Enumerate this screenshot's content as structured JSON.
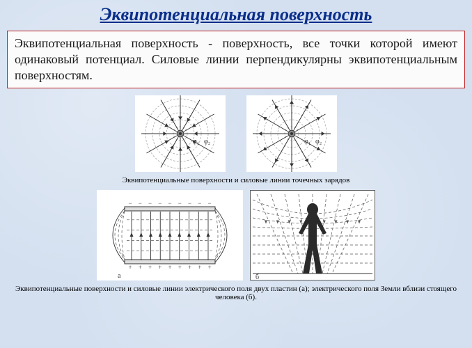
{
  "title": {
    "text": "Эквипотенциальная поверхность",
    "color": "#0b2e8a",
    "fontsize": 26
  },
  "definition": {
    "text": "Эквипотенциальная поверхность - поверхность, все точки которой имеют одинаковый потенциал. Силовые линии перпендикулярны эквипотенциальным поверхностям.",
    "border_color": "#c02020",
    "bg_color": "#fbfbfb",
    "fontsize": 18,
    "text_color": "#1a1a1a"
  },
  "figure1": {
    "type": "diagram",
    "caption": "Эквипотенциальные поверхности и силовые линии точечных зарядов",
    "panel_bg": "#ffffff",
    "line_color": "#333333",
    "circle_color": "#aaaaaa",
    "radii": [
      10,
      20,
      30,
      40,
      50
    ],
    "n_rays": 12,
    "labels": {
      "phi1": "φ₁",
      "phi2": "φ₂"
    },
    "label_fontsize": 10,
    "arrow_outward_left": false,
    "arrow_outward_right": true
  },
  "figure2": {
    "type": "diagram",
    "caption": "Эквипотенциальные поверхности и силовые линии электрического поля двух пластин (а); электрического поля Земли вблизи стоящего человека (б).",
    "panel_bg": "#ffffff",
    "line_color": "#333333",
    "dash_color": "#555555",
    "plate_neg": "−",
    "plate_pos": "+",
    "label_a": "а",
    "label_b": "б",
    "label_fontsize": 10,
    "n_field_lines": 9,
    "human_fill": "#2a2a2a"
  },
  "page_bg": "#d4e0f0"
}
